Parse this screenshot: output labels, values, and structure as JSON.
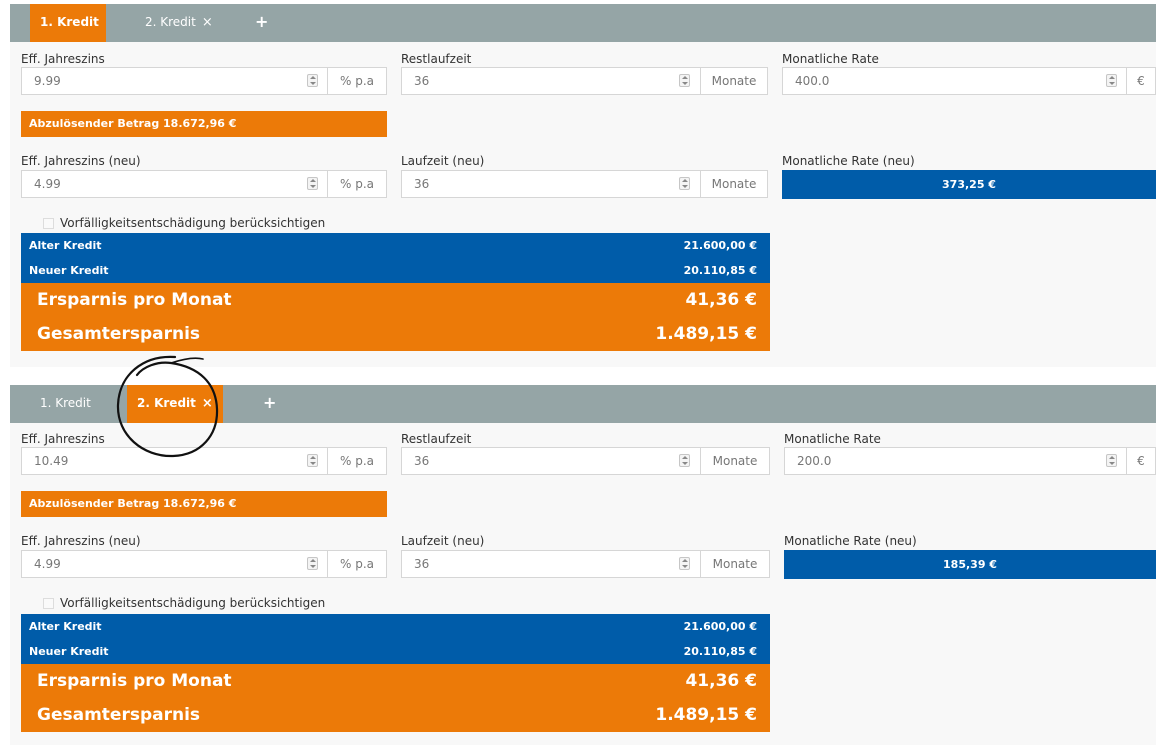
{
  "panels": [
    {
      "tabs": [
        {
          "label": "1. Kredit",
          "active": true,
          "closable": false
        },
        {
          "label": "2. Kredit",
          "active": false,
          "closable": true
        },
        {
          "label": "+",
          "active": false,
          "closable": false
        }
      ],
      "close_glyph": "×",
      "fields": {
        "eff_jahreszins": {
          "label": "Eff. Jahreszins",
          "value": "9.99",
          "unit": "% p.a"
        },
        "restlaufzeit": {
          "label": "Restlaufzeit",
          "value": "36",
          "unit": "Monate"
        },
        "monatliche_rate": {
          "label": "Monatliche Rate",
          "value": "400.0",
          "unit": "€"
        },
        "eff_jahreszins_neu": {
          "label": "Eff. Jahreszins (neu)",
          "value": "4.99",
          "unit": "% p.a"
        },
        "laufzeit_neu": {
          "label": "Laufzeit (neu)",
          "value": "36",
          "unit": "Monate"
        }
      },
      "abloese": "Abzulösender Betrag 18.672,96 €",
      "rate_neu": {
        "label": "Monatliche Rate (neu)",
        "value": "373,25 €"
      },
      "checkbox_label": "Vorfälligkeitsentschädigung berücksichtigen",
      "summary": {
        "alter": {
          "label": "Alter Kredit",
          "value": "21.600,00 €"
        },
        "neuer": {
          "label": "Neuer Kredit",
          "value": "20.110,85 €"
        },
        "ersparnis": {
          "label": "Ersparnis pro Monat",
          "value": "41,36 €"
        },
        "gesamt": {
          "label": "Gesamtersparnis",
          "value": "1.489,15 €"
        }
      }
    },
    {
      "tabs": [
        {
          "label": "1. Kredit",
          "active": false,
          "closable": false
        },
        {
          "label": "2. Kredit",
          "active": true,
          "closable": true
        },
        {
          "label": "+",
          "active": false,
          "closable": false
        }
      ],
      "close_glyph": "×",
      "fields": {
        "eff_jahreszins": {
          "label": "Eff. Jahreszins",
          "value": "10.49",
          "unit": "% p.a"
        },
        "restlaufzeit": {
          "label": "Restlaufzeit",
          "value": "36",
          "unit": "Monate"
        },
        "monatliche_rate": {
          "label": "Monatliche Rate",
          "value": "200.0",
          "unit": "€"
        },
        "eff_jahreszins_neu": {
          "label": "Eff. Jahreszins (neu)",
          "value": "4.99",
          "unit": "% p.a"
        },
        "laufzeit_neu": {
          "label": "Laufzeit (neu)",
          "value": "36",
          "unit": "Monate"
        }
      },
      "abloese": "Abzulösender Betrag 18.672,96 €",
      "rate_neu": {
        "label": "Monatliche Rate (neu)",
        "value": "185,39 €"
      },
      "checkbox_label": "Vorfälligkeitsentschädigung berücksichtigen",
      "summary": {
        "alter": {
          "label": "Alter Kredit",
          "value": "21.600,00 €"
        },
        "neuer": {
          "label": "Neuer Kredit",
          "value": "20.110,85 €"
        },
        "ersparnis": {
          "label": "Ersparnis pro Monat",
          "value": "41,36 €"
        },
        "gesamt": {
          "label": "Gesamtersparnis",
          "value": "1.489,15 €"
        }
      }
    }
  ],
  "colors": {
    "orange": "#ec7a08",
    "blue": "#005ca9",
    "tabbar": "#95a5a6"
  }
}
